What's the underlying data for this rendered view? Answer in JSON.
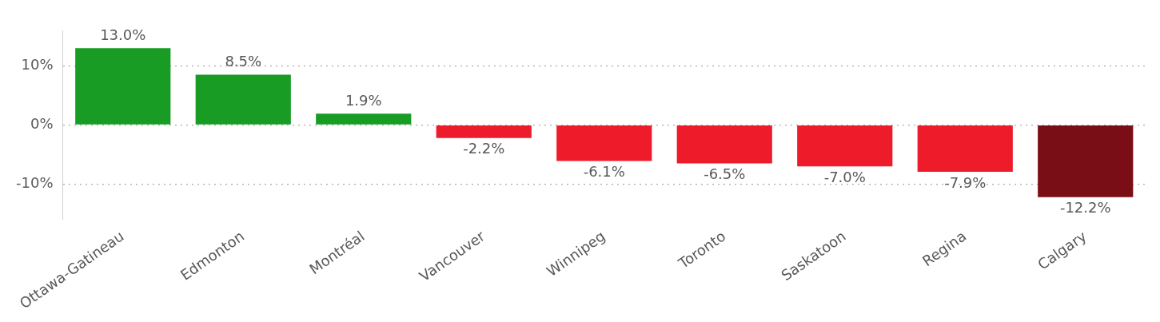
{
  "chart_data": {
    "type": "bar",
    "categories": [
      "Ottawa-Gatineau",
      "Edmonton",
      "Montréal",
      "Vancouver",
      "Winnipeg",
      "Toronto",
      "Saskatoon",
      "Regina",
      "Calgary"
    ],
    "values": [
      13.0,
      8.5,
      1.9,
      -2.2,
      -6.1,
      -6.5,
      -7.0,
      -7.9,
      -12.2
    ],
    "colors": [
      "#189c24",
      "#189c24",
      "#189c24",
      "#ee1c2b",
      "#ee1c2b",
      "#ee1c2b",
      "#ee1c2b",
      "#ee1c2b",
      "#7a0e16"
    ],
    "value_labels": [
      "13.0%",
      "8.5%",
      "1.9%",
      "-2.2%",
      "-6.1%",
      "-6.5%",
      "-7.0%",
      "-7.9%",
      "-12.2%"
    ],
    "ylim": [
      -16,
      16
    ],
    "yticks": [
      {
        "value": -10,
        "label": "-10%"
      },
      {
        "value": 0,
        "label": "0%"
      },
      {
        "value": 10,
        "label": "10%"
      }
    ],
    "grid": "y",
    "legend": false
  }
}
